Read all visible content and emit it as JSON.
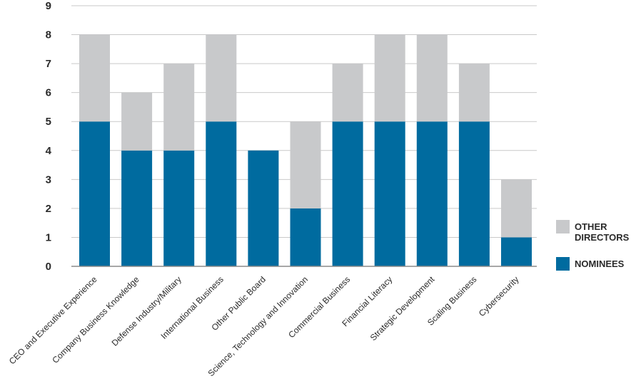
{
  "chart_data": {
    "type": "bar",
    "stacked": true,
    "categories": [
      "CEO and Executive Experience",
      "Company Business Knowledge",
      "Defense Industry/Military",
      "International Business",
      "Other Public Board",
      "Science, Technology and Innovation",
      "Commercial Business",
      "Financial Literacy",
      "Strategic Development",
      "Scaling Business",
      "Cybersecurity"
    ],
    "series": [
      {
        "name": "NOMINEES",
        "color": "#006b9f",
        "values": [
          5,
          4,
          4,
          5,
          4,
          2,
          5,
          5,
          5,
          5,
          1
        ]
      },
      {
        "name": "OTHER DIRECTORS",
        "color": "#c8c9cb",
        "values": [
          3,
          2,
          3,
          3,
          0,
          3,
          2,
          3,
          3,
          2,
          2
        ]
      }
    ],
    "ylim": [
      0,
      9
    ],
    "yticks": [
      0,
      1,
      2,
      3,
      4,
      5,
      6,
      7,
      8,
      9
    ],
    "grid": true,
    "legend_position": "right",
    "title": "",
    "xlabel": "",
    "ylabel": ""
  }
}
